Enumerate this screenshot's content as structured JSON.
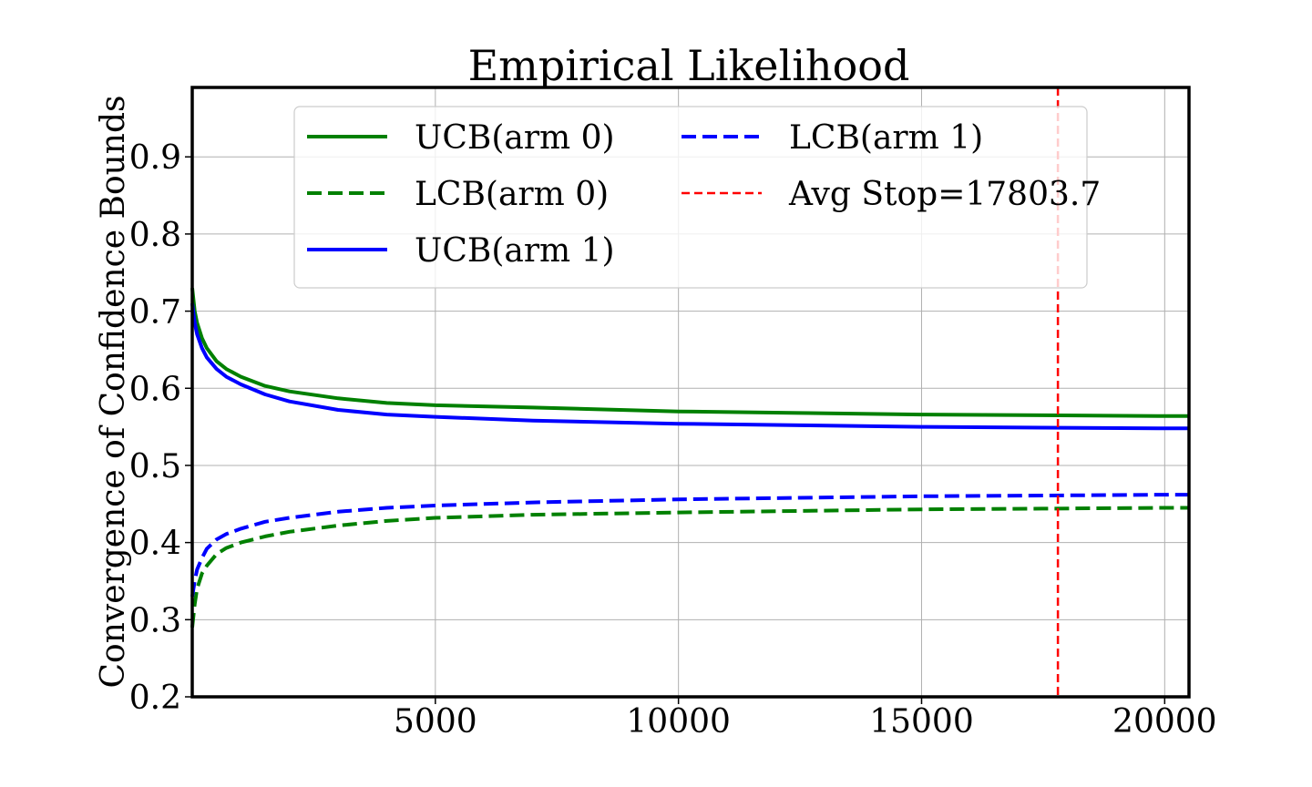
{
  "chart_data": {
    "type": "line",
    "title": "Empirical Likelihood",
    "xlabel": "",
    "ylabel": "Convergence of Confidence Bounds",
    "xlim": [
      0,
      20500
    ],
    "ylim": [
      0.2,
      0.99
    ],
    "xticks": [
      5000,
      10000,
      15000,
      20000
    ],
    "yticks": [
      0.2,
      0.3,
      0.4,
      0.5,
      0.6,
      0.7,
      0.8,
      0.9
    ],
    "xtick_labels": [
      "5000",
      "10000",
      "15000",
      "20000"
    ],
    "ytick_labels": [
      "0.2",
      "0.3",
      "0.4",
      "0.5",
      "0.6",
      "0.7",
      "0.8",
      "0.9"
    ],
    "grid": true,
    "legend_position": "upper-center",
    "x": [
      0,
      50,
      100,
      200,
      300,
      500,
      700,
      1000,
      1500,
      2000,
      3000,
      4000,
      5000,
      7000,
      10000,
      12500,
      15000,
      17500,
      20000,
      20500
    ],
    "series": [
      {
        "name": "UCB(arm 0)",
        "color": "#008000",
        "style": "solid",
        "values": [
          0.73,
          0.7,
          0.685,
          0.665,
          0.652,
          0.635,
          0.625,
          0.615,
          0.603,
          0.596,
          0.587,
          0.581,
          0.578,
          0.575,
          0.57,
          0.568,
          0.566,
          0.565,
          0.564,
          0.564
        ]
      },
      {
        "name": "LCB(arm 0)",
        "color": "#008000",
        "style": "dashed",
        "values": [
          0.29,
          0.32,
          0.34,
          0.36,
          0.37,
          0.385,
          0.393,
          0.4,
          0.408,
          0.414,
          0.422,
          0.428,
          0.432,
          0.436,
          0.439,
          0.441,
          0.443,
          0.444,
          0.445,
          0.445
        ]
      },
      {
        "name": "UCB(arm 1)",
        "color": "#0000ff",
        "style": "solid",
        "values": [
          0.71,
          0.685,
          0.67,
          0.652,
          0.64,
          0.625,
          0.615,
          0.605,
          0.592,
          0.583,
          0.572,
          0.566,
          0.563,
          0.558,
          0.554,
          0.552,
          0.55,
          0.549,
          0.548,
          0.548
        ]
      },
      {
        "name": "LCB(arm 1)",
        "color": "#0000ff",
        "style": "dashed",
        "values": [
          0.33,
          0.35,
          0.365,
          0.38,
          0.392,
          0.404,
          0.411,
          0.418,
          0.427,
          0.432,
          0.44,
          0.445,
          0.448,
          0.452,
          0.456,
          0.458,
          0.46,
          0.461,
          0.462,
          0.462
        ]
      }
    ],
    "vline": {
      "name": "Avg Stop=17803.7",
      "x": 17803.7,
      "color": "#ff0000",
      "style": "dashed"
    }
  }
}
